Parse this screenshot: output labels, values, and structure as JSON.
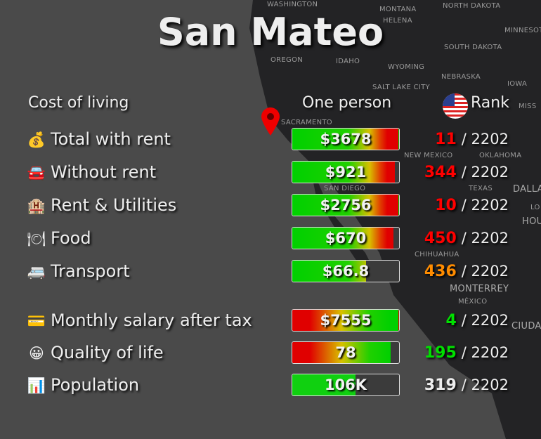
{
  "title": "San Mateo",
  "header": {
    "section": "Cost of living",
    "column": "One person",
    "rank": "Rank"
  },
  "map_labels": [
    "WASHINGTON",
    "MONTANA",
    "HELENA",
    "NORTH DAKOTA",
    "MINNESOTA",
    "OREGON",
    "IDAHO",
    "SOUTH DAKOTA",
    "WYOMING",
    "NEBRASKA",
    "IOWA",
    "SALT LAKE CITY",
    "MISS",
    "SACRAMENTO",
    "NEW MEXICO",
    "OKLAHOMA",
    "SAN DIEGO",
    "DALLAS",
    "TEXAS",
    "LO",
    "HOU",
    "CHIHUAHUA",
    "MONTERREY",
    "MÉXICO",
    "CIUDAD DE"
  ],
  "rows": [
    {
      "icon": "money-bag-icon",
      "emoji": "💰",
      "label": "Total with rent",
      "value": "$3678",
      "fill": 1.0,
      "bar": "cost",
      "rank": "11",
      "rank_color": "#ff0000",
      "total": "/ 2202"
    },
    {
      "icon": "car-icon",
      "emoji": "🚘",
      "label": "Without rent",
      "value": "$921",
      "fill": 0.96,
      "bar": "cost",
      "rank": "344",
      "rank_color": "#ff0000",
      "total": "/ 2202"
    },
    {
      "icon": "hotel-icon",
      "emoji": "🏨",
      "label": "Rent & Utilities",
      "value": "$2756",
      "fill": 1.0,
      "bar": "cost",
      "rank": "10",
      "rank_color": "#ff0000",
      "total": "/ 2202"
    },
    {
      "icon": "plate-icon",
      "emoji": "🍽",
      "label": "Food",
      "value": "$670",
      "fill": 0.95,
      "bar": "cost",
      "rank": "450",
      "rank_color": "#ff0000",
      "total": "/ 2202"
    },
    {
      "icon": "minibus-icon",
      "emoji": "🚐",
      "label": "Transport",
      "value": "$66.8",
      "fill": 0.69,
      "bar": "cost",
      "rank": "436",
      "rank_color": "#ff8c00",
      "total": "/ 2202"
    },
    {
      "icon": "credit-card-icon",
      "emoji": "💳",
      "label": "Monthly salary after tax",
      "value": "$7555",
      "fill": 1.0,
      "bar": "good",
      "rank": "4",
      "rank_color": "#00e000",
      "total": "/ 2202"
    },
    {
      "icon": "smiley-icon",
      "emoji": "😀",
      "label": "Quality of life",
      "value": "78",
      "fill": 0.92,
      "bar": "good",
      "rank": "195",
      "rank_color": "#00e000",
      "total": "/ 2202"
    },
    {
      "icon": "city-chart-icon",
      "emoji": "📊",
      "label": "Population",
      "value": "106K",
      "fill": 0.59,
      "bar": "plain",
      "rank": "319",
      "rank_color": "#eeeeee",
      "total": "/ 2202"
    }
  ]
}
